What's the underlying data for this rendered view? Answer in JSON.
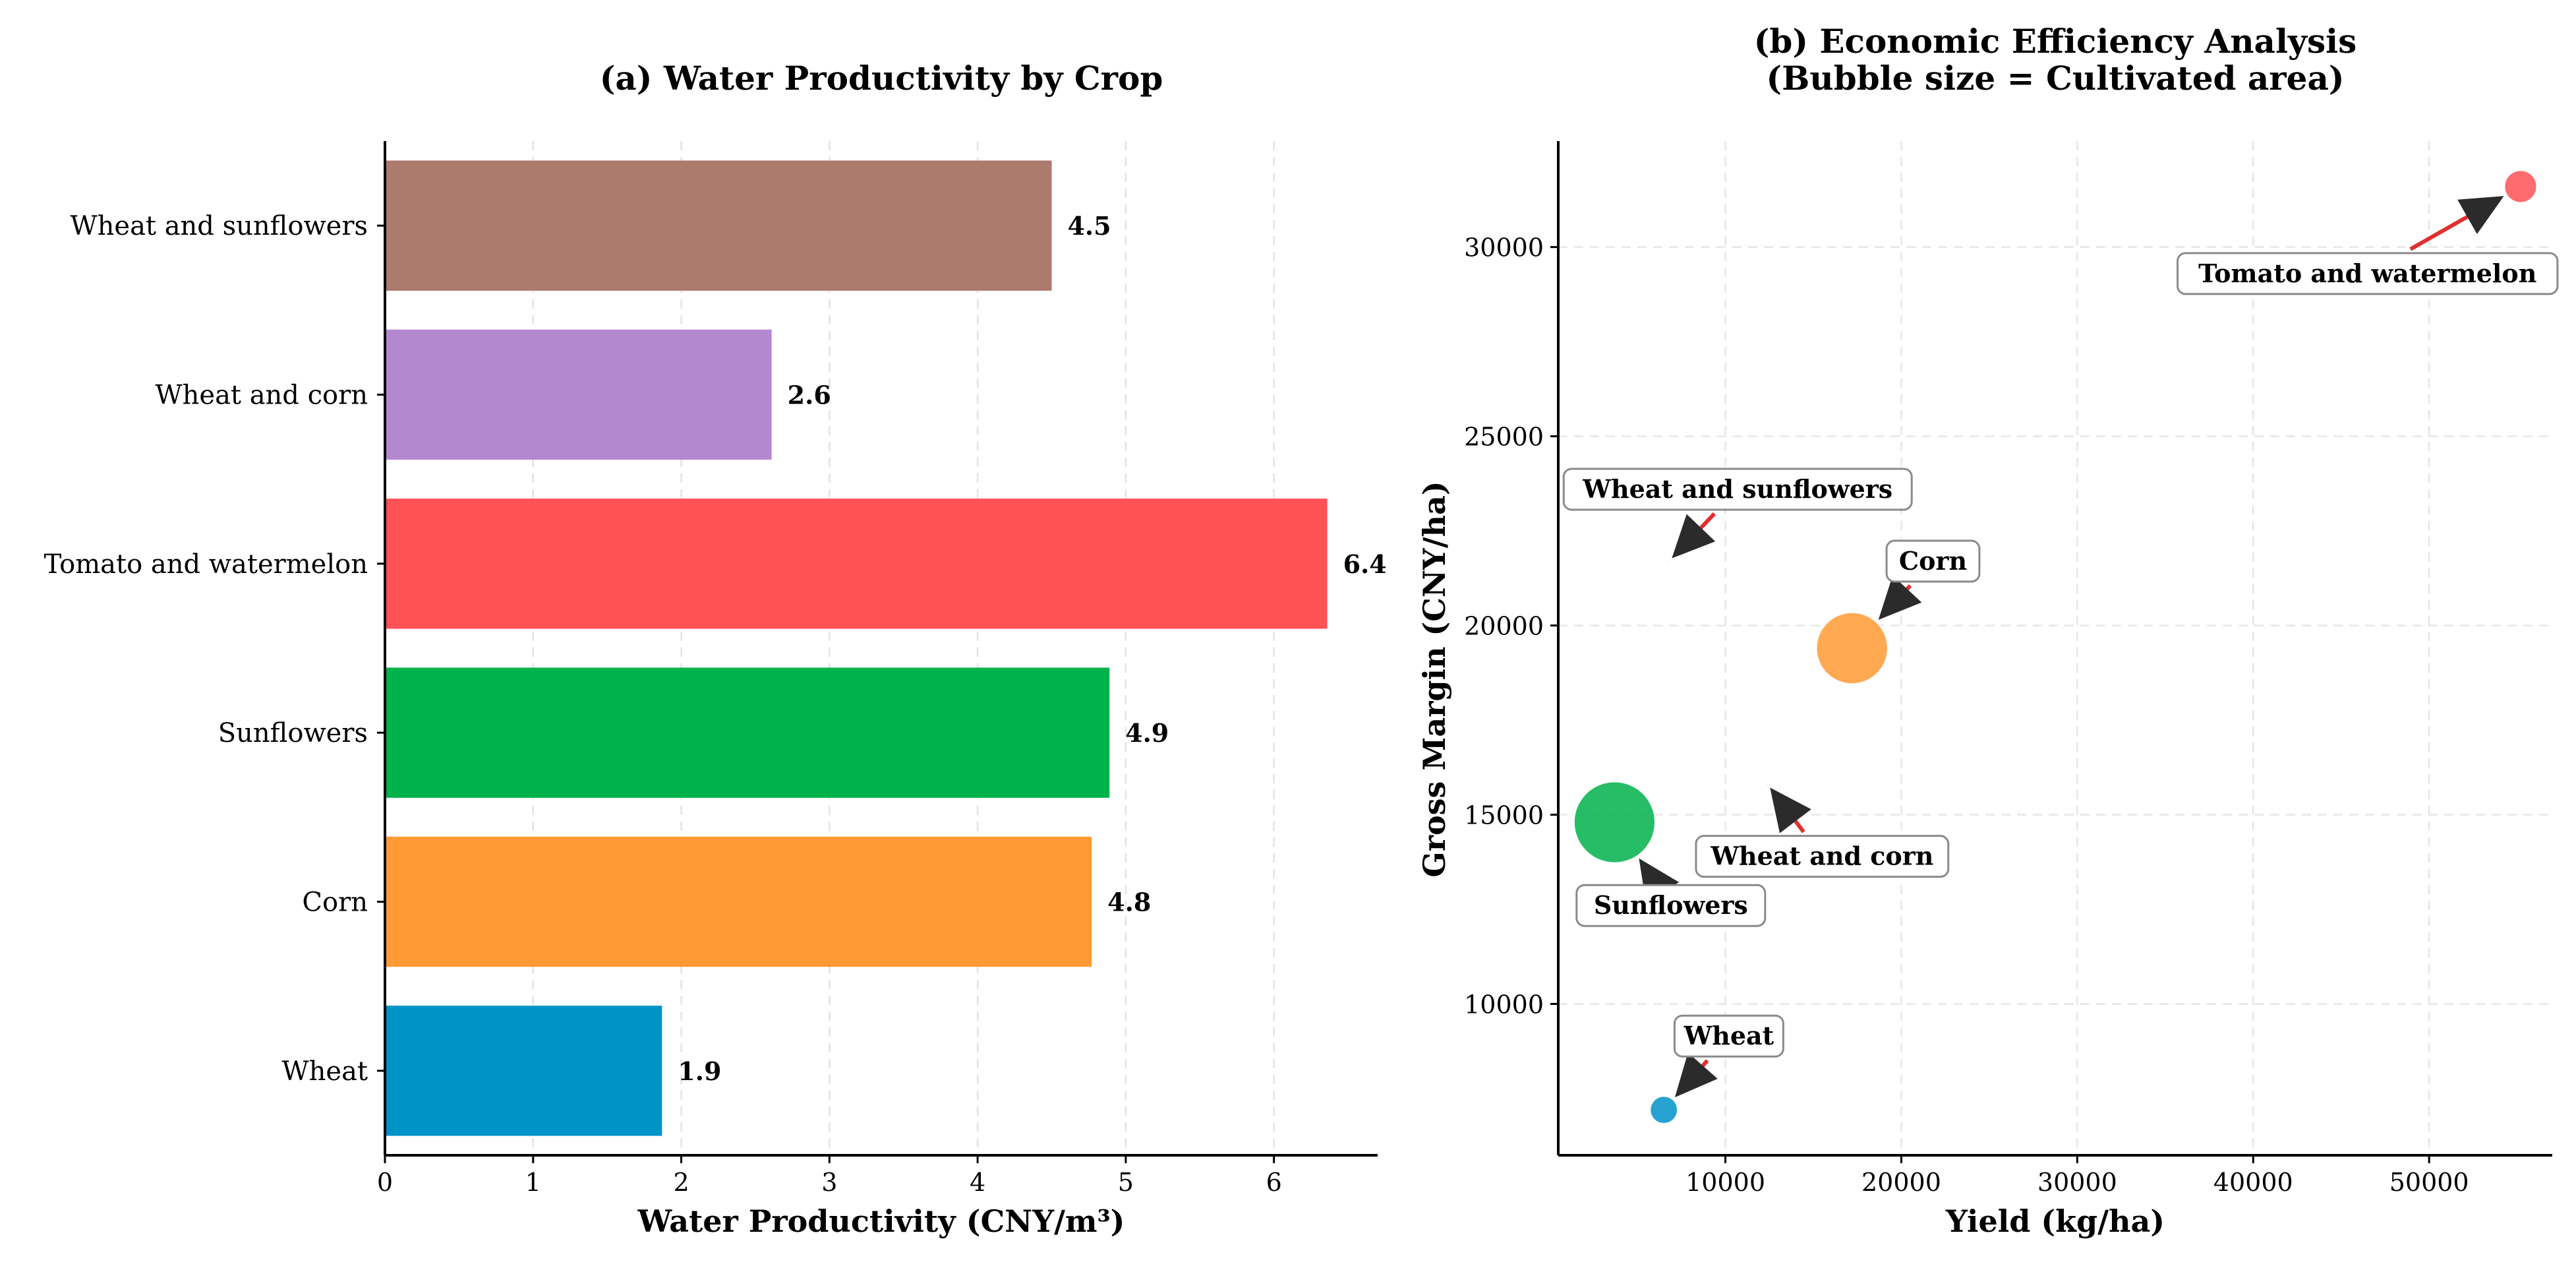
{
  "chart_data": [
    {
      "type": "bar",
      "orientation": "horizontal",
      "title": "(a) Water Productivity by Crop",
      "xlabel": "Water Productivity (CNY/m³)",
      "ylabel": "",
      "categories": [
        "Wheat",
        "Corn",
        "Sunflowers",
        "Tomato and  watermelon",
        "Wheat and corn",
        "Wheat and sunflowers"
      ],
      "values": [
        1.87,
        4.77,
        4.89,
        6.36,
        2.61,
        4.5
      ],
      "value_labels": [
        "1.9",
        "4.8",
        "4.9",
        "6.4",
        "2.6",
        "4.5"
      ],
      "colors": [
        "#0093c8",
        "#ff9a35",
        "#00b24b",
        "#ff5256",
        "#b488cf",
        "#ad7a6e"
      ],
      "xlim": [
        0,
        6.7
      ],
      "xticks": [
        0,
        1,
        2,
        3,
        4,
        5,
        6
      ],
      "xtick_labels": [
        "0",
        "1",
        "2",
        "3",
        "4",
        "5",
        "6"
      ],
      "grid": "x dashed"
    },
    {
      "type": "scatter",
      "subtype": "bubble",
      "title": [
        "(b) Economic Efficiency Analysis",
        "(Bubble size = Cultivated area)"
      ],
      "xlabel": "Yield (kg/ha)",
      "ylabel": "Gross Margin (CNY/ha)",
      "xlim": [
        500,
        57000
      ],
      "ylim": [
        6000,
        32800
      ],
      "xticks": [
        10000,
        20000,
        30000,
        40000,
        50000
      ],
      "xtick_labels": [
        "10000",
        "20000",
        "30000",
        "40000",
        "50000"
      ],
      "yticks": [
        10000,
        15000,
        20000,
        25000,
        30000
      ],
      "ytick_labels": [
        "10000",
        "15000",
        "20000",
        "25000",
        "30000"
      ],
      "grid": "both dashed",
      "points": [
        {
          "label": "Wheat",
          "x": 6500,
          "y": 7200,
          "size": 2,
          "color": "#0093c8",
          "label_x": 10200,
          "label_y": 9150
        },
        {
          "label": "Corn",
          "x": 17200,
          "y": 19400,
          "size": 11,
          "color": "#ff9a35",
          "label_x": 21800,
          "label_y": 21700
        },
        {
          "label": "Sunflowers",
          "x": 3700,
          "y": 14800,
          "size": 13,
          "color": "#00b24b",
          "label_x": 6900,
          "label_y": 12600
        },
        {
          "label": "Tomato and  watermelon",
          "x": 55200,
          "y": 31600,
          "size": 3,
          "color": "#ff5256",
          "label_x": 46500,
          "label_y": 29300
        },
        {
          "label": "Wheat and corn",
          "x": 12400,
          "y": 15800,
          "size": 0,
          "color": "#b488cf",
          "label_x": 15500,
          "label_y": 13900
        },
        {
          "label": "Wheat and sunflowers",
          "x": 6800,
          "y": 21700,
          "size": 0,
          "color": "#ad7a6e",
          "label_x": 10700,
          "label_y": 23600
        }
      ]
    }
  ]
}
